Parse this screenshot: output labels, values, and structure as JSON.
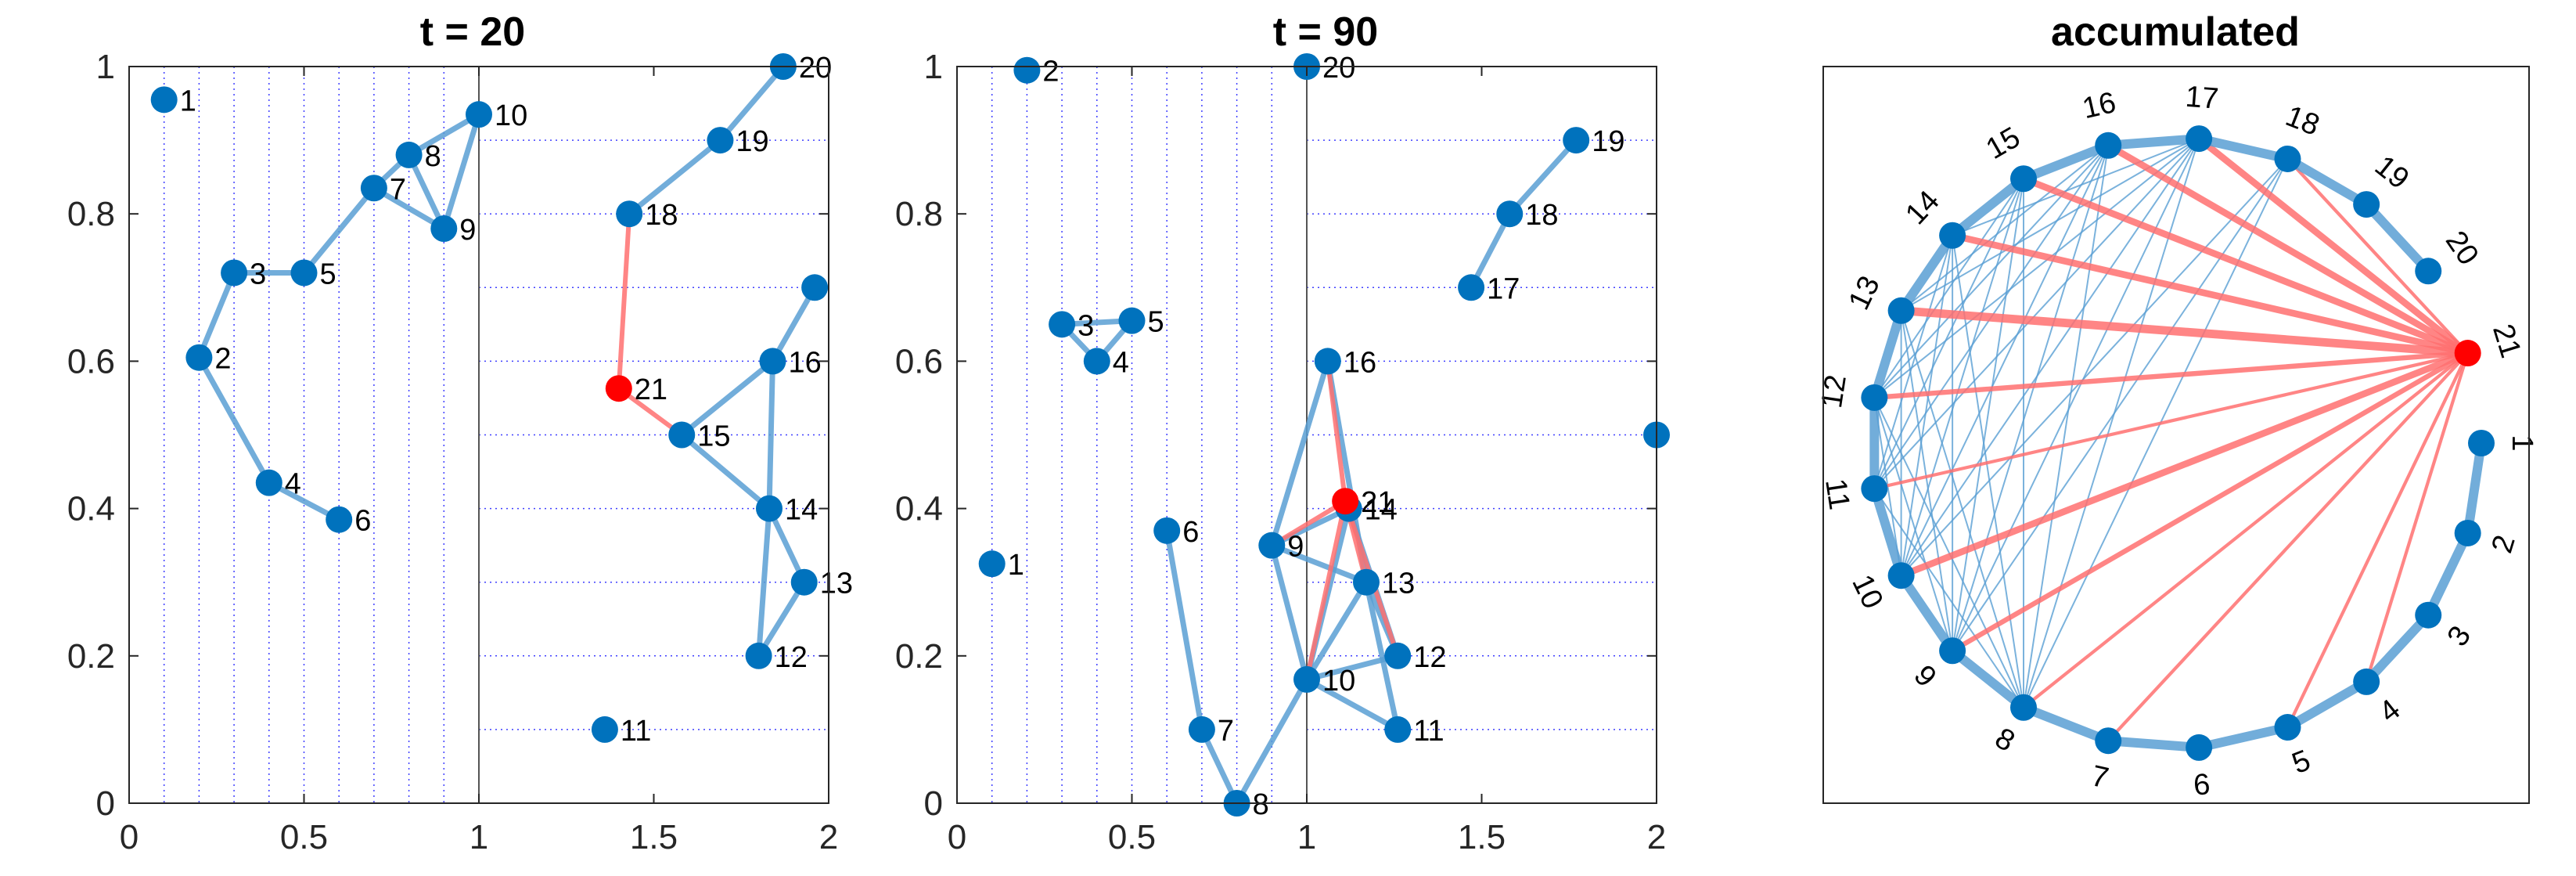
{
  "colors": {
    "node": "#0072bd",
    "edge": "#5a9fd4",
    "special": "#ff0000",
    "special_edge": "#ff7070",
    "guide": "#0000ff",
    "axis": "#262626"
  },
  "chart_data": [
    {
      "type": "scatter",
      "title": "t = 20",
      "xlim": [
        0,
        2
      ],
      "ylim": [
        0,
        1
      ],
      "xticks": [
        "0",
        "0.5",
        "1",
        "1.5",
        "2"
      ],
      "yticks": [
        "0",
        "0.2",
        "0.4",
        "0.6",
        "0.8",
        "1"
      ],
      "vertical_guides": [
        0.1,
        0.2,
        0.3,
        0.4,
        0.5,
        0.6,
        0.7,
        0.8,
        0.9
      ],
      "horizontal_guides": [
        0.1,
        0.2,
        0.3,
        0.4,
        0.5,
        0.6,
        0.7,
        0.8,
        0.9
      ],
      "divider_x": 1,
      "nodes": [
        {
          "label": "1",
          "x": 0.1,
          "y": 0.955
        },
        {
          "label": "2",
          "x": 0.2,
          "y": 0.605
        },
        {
          "label": "3",
          "x": 0.3,
          "y": 0.72
        },
        {
          "label": "4",
          "x": 0.4,
          "y": 0.435
        },
        {
          "label": "5",
          "x": 0.5,
          "y": 0.72
        },
        {
          "label": "6",
          "x": 0.6,
          "y": 0.385
        },
        {
          "label": "7",
          "x": 0.7,
          "y": 0.835
        },
        {
          "label": "8",
          "x": 0.8,
          "y": 0.88
        },
        {
          "label": "9",
          "x": 0.9,
          "y": 0.78
        },
        {
          "label": "10",
          "x": 1.0,
          "y": 0.935
        },
        {
          "label": "11",
          "x": 1.36,
          "y": 0.1
        },
        {
          "label": "12",
          "x": 1.8,
          "y": 0.2
        },
        {
          "label": "13",
          "x": 1.93,
          "y": 0.3
        },
        {
          "label": "14",
          "x": 1.83,
          "y": 0.4
        },
        {
          "label": "15",
          "x": 1.58,
          "y": 0.5
        },
        {
          "label": "16",
          "x": 1.84,
          "y": 0.6
        },
        {
          "label": "",
          "x": 1.96,
          "y": 0.7
        },
        {
          "label": "18",
          "x": 1.43,
          "y": 0.8
        },
        {
          "label": "19",
          "x": 1.69,
          "y": 0.9
        },
        {
          "label": "20",
          "x": 1.87,
          "y": 1.0
        },
        {
          "label": "21",
          "x": 1.4,
          "y": 0.563,
          "special": true
        }
      ],
      "edges": [
        [
          "2",
          "3"
        ],
        [
          "3",
          "5"
        ],
        [
          "2",
          "4"
        ],
        [
          "4",
          "6"
        ],
        [
          "5",
          "7"
        ],
        [
          "7",
          "8"
        ],
        [
          "8",
          "9"
        ],
        [
          "8",
          "10"
        ],
        [
          "9",
          "10"
        ],
        [
          "7",
          "9"
        ],
        [
          "18",
          "19"
        ],
        [
          "19",
          "20"
        ],
        [
          "15",
          "16"
        ],
        [
          "16",
          ""
        ],
        [
          "16",
          "14"
        ],
        [
          "15",
          "14"
        ],
        [
          "14",
          "13"
        ],
        [
          "13",
          "12"
        ],
        [
          "12",
          "14"
        ]
      ],
      "special_edges": [
        [
          "21",
          "18"
        ],
        [
          "21",
          "15"
        ]
      ]
    },
    {
      "type": "scatter",
      "title": "t = 90",
      "xlim": [
        0,
        2
      ],
      "ylim": [
        0,
        1
      ],
      "xticks": [
        "0",
        "0.5",
        "1",
        "1.5",
        "2"
      ],
      "yticks": [
        "0",
        "0.2",
        "0.4",
        "0.6",
        "0.8",
        "1"
      ],
      "vertical_guides": [
        0.1,
        0.2,
        0.3,
        0.4,
        0.5,
        0.6,
        0.7,
        0.8,
        0.9
      ],
      "horizontal_guides": [
        0.1,
        0.2,
        0.3,
        0.4,
        0.5,
        0.6,
        0.7,
        0.8,
        0.9
      ],
      "divider_x": 1,
      "nodes": [
        {
          "label": "1",
          "x": 0.1,
          "y": 0.325
        },
        {
          "label": "2",
          "x": 0.2,
          "y": 0.995
        },
        {
          "label": "3",
          "x": 0.3,
          "y": 0.65
        },
        {
          "label": "4",
          "x": 0.4,
          "y": 0.6
        },
        {
          "label": "5",
          "x": 0.5,
          "y": 0.655
        },
        {
          "label": "6",
          "x": 0.6,
          "y": 0.37
        },
        {
          "label": "7",
          "x": 0.7,
          "y": 0.1
        },
        {
          "label": "8",
          "x": 0.8,
          "y": 0.0
        },
        {
          "label": "9",
          "x": 0.9,
          "y": 0.35
        },
        {
          "label": "10",
          "x": 1.0,
          "y": 0.168
        },
        {
          "label": "11",
          "x": 1.26,
          "y": 0.1
        },
        {
          "label": "12",
          "x": 1.26,
          "y": 0.2
        },
        {
          "label": "13",
          "x": 1.17,
          "y": 0.3
        },
        {
          "label": "14",
          "x": 1.12,
          "y": 0.4
        },
        {
          "label": "",
          "x": 2.0,
          "y": 0.5
        },
        {
          "label": "16",
          "x": 1.06,
          "y": 0.6
        },
        {
          "label": "17",
          "x": 1.47,
          "y": 0.7
        },
        {
          "label": "18",
          "x": 1.58,
          "y": 0.8
        },
        {
          "label": "19",
          "x": 1.77,
          "y": 0.9
        },
        {
          "label": "20",
          "x": 1.0,
          "y": 1.0
        },
        {
          "label": "21",
          "x": 1.11,
          "y": 0.41,
          "special": true
        }
      ],
      "edges": [
        [
          "3",
          "5"
        ],
        [
          "3",
          "4"
        ],
        [
          "4",
          "5"
        ],
        [
          "7",
          "8"
        ],
        [
          "8",
          "10"
        ],
        [
          "9",
          "10"
        ],
        [
          "9",
          "16"
        ],
        [
          "9",
          "14"
        ],
        [
          "9",
          "13"
        ],
        [
          "16",
          "13"
        ],
        [
          "10",
          "14"
        ],
        [
          "10",
          "13"
        ],
        [
          "10",
          "12"
        ],
        [
          "10",
          "11"
        ],
        [
          "13",
          "11"
        ],
        [
          "13",
          "12"
        ],
        [
          "14",
          "12"
        ],
        [
          "17",
          "18"
        ],
        [
          "18",
          "19"
        ],
        [
          "6",
          "7"
        ]
      ],
      "special_edges": [
        [
          "21",
          "16"
        ],
        [
          "21",
          "10"
        ],
        [
          "21",
          "12"
        ],
        [
          "21",
          "13"
        ],
        [
          "21",
          "9"
        ]
      ]
    },
    {
      "type": "network",
      "title": "accumulated",
      "nodes": [
        "1",
        "2",
        "3",
        "4",
        "5",
        "6",
        "7",
        "8",
        "9",
        "10",
        "11",
        "12",
        "13",
        "14",
        "15",
        "16",
        "17",
        "18",
        "19",
        "20",
        "21"
      ],
      "special_node": "21",
      "ring_edges": [
        [
          "1",
          "2"
        ],
        [
          "2",
          "3"
        ],
        [
          "3",
          "4"
        ],
        [
          "4",
          "5"
        ],
        [
          "5",
          "6"
        ],
        [
          "6",
          "7"
        ],
        [
          "7",
          "8"
        ],
        [
          "8",
          "9"
        ],
        [
          "9",
          "10"
        ],
        [
          "10",
          "11"
        ],
        [
          "11",
          "12"
        ],
        [
          "12",
          "13"
        ],
        [
          "13",
          "14"
        ],
        [
          "14",
          "15"
        ],
        [
          "15",
          "16"
        ],
        [
          "16",
          "17"
        ],
        [
          "17",
          "18"
        ],
        [
          "18",
          "19"
        ],
        [
          "19",
          "20"
        ]
      ],
      "chord_edges": [
        [
          "8",
          "11"
        ],
        [
          "8",
          "12"
        ],
        [
          "8",
          "13"
        ],
        [
          "8",
          "14"
        ],
        [
          "8",
          "15"
        ],
        [
          "8",
          "16"
        ],
        [
          "8",
          "17"
        ],
        [
          "8",
          "18"
        ],
        [
          "9",
          "12"
        ],
        [
          "9",
          "13"
        ],
        [
          "9",
          "14"
        ],
        [
          "9",
          "15"
        ],
        [
          "9",
          "16"
        ],
        [
          "9",
          "17"
        ],
        [
          "9",
          "18"
        ],
        [
          "10",
          "12"
        ],
        [
          "10",
          "13"
        ],
        [
          "10",
          "14"
        ],
        [
          "10",
          "15"
        ],
        [
          "10",
          "16"
        ],
        [
          "10",
          "17"
        ],
        [
          "10",
          "18"
        ],
        [
          "11",
          "14"
        ],
        [
          "11",
          "15"
        ],
        [
          "11",
          "16"
        ],
        [
          "11",
          "17"
        ],
        [
          "12",
          "15"
        ],
        [
          "12",
          "16"
        ],
        [
          "12",
          "17"
        ],
        [
          "13",
          "16"
        ],
        [
          "13",
          "17"
        ],
        [
          "14",
          "17"
        ]
      ],
      "special_edges": [
        {
          "to": "4",
          "weight": 1
        },
        {
          "to": "5",
          "weight": 1
        },
        {
          "to": "7",
          "weight": 1
        },
        {
          "to": "8",
          "weight": 1
        },
        {
          "to": "9",
          "weight": 2
        },
        {
          "to": "10",
          "weight": 3
        },
        {
          "to": "11",
          "weight": 1
        },
        {
          "to": "12",
          "weight": 2
        },
        {
          "to": "13",
          "weight": 4
        },
        {
          "to": "14",
          "weight": 3
        },
        {
          "to": "15",
          "weight": 3
        },
        {
          "to": "16",
          "weight": 3
        },
        {
          "to": "17",
          "weight": 3
        },
        {
          "to": "18",
          "weight": 1
        }
      ]
    }
  ]
}
